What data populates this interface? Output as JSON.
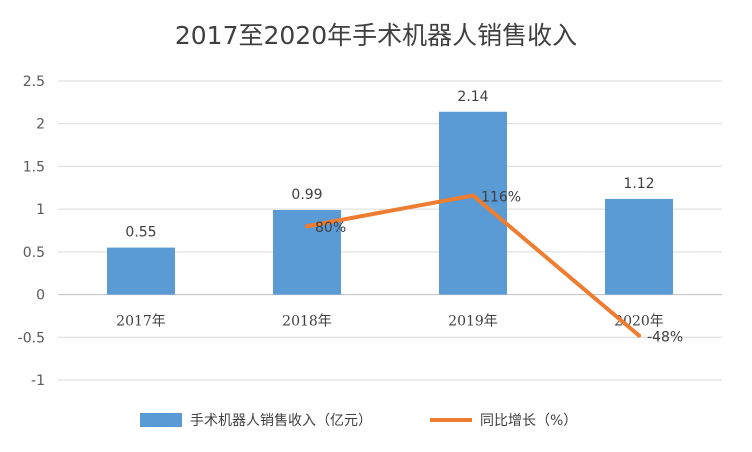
{
  "chart_data": {
    "type": "bar",
    "title": "2017至2020年手术机器人销售收入",
    "categories": [
      "2017年",
      "2018年",
      "2019年",
      "2020年"
    ],
    "ylim": [
      -1,
      2.5
    ],
    "yticks": [
      -1,
      -0.5,
      0,
      0.5,
      1,
      1.5,
      2,
      2.5
    ],
    "ytick_labels": [
      "-1",
      "-0.5",
      "0",
      "0.5",
      "1",
      "1.5",
      "2",
      "2.5"
    ],
    "grid": true,
    "legend": "bottom",
    "series": [
      {
        "name": "手术机器人销售收入（亿元）",
        "type": "bar",
        "color": "#5B9BD5",
        "values": [
          0.55,
          0.99,
          2.14,
          1.12
        ],
        "labels": [
          "0.55",
          "0.99",
          "2.14",
          "1.12"
        ]
      },
      {
        "name": "同比增长（%）",
        "type": "line",
        "color": "#ED7D31",
        "values": [
          null,
          0.8,
          1.16,
          -0.48
        ],
        "labels": [
          "",
          "80%",
          "116%",
          "-48%"
        ]
      }
    ]
  }
}
